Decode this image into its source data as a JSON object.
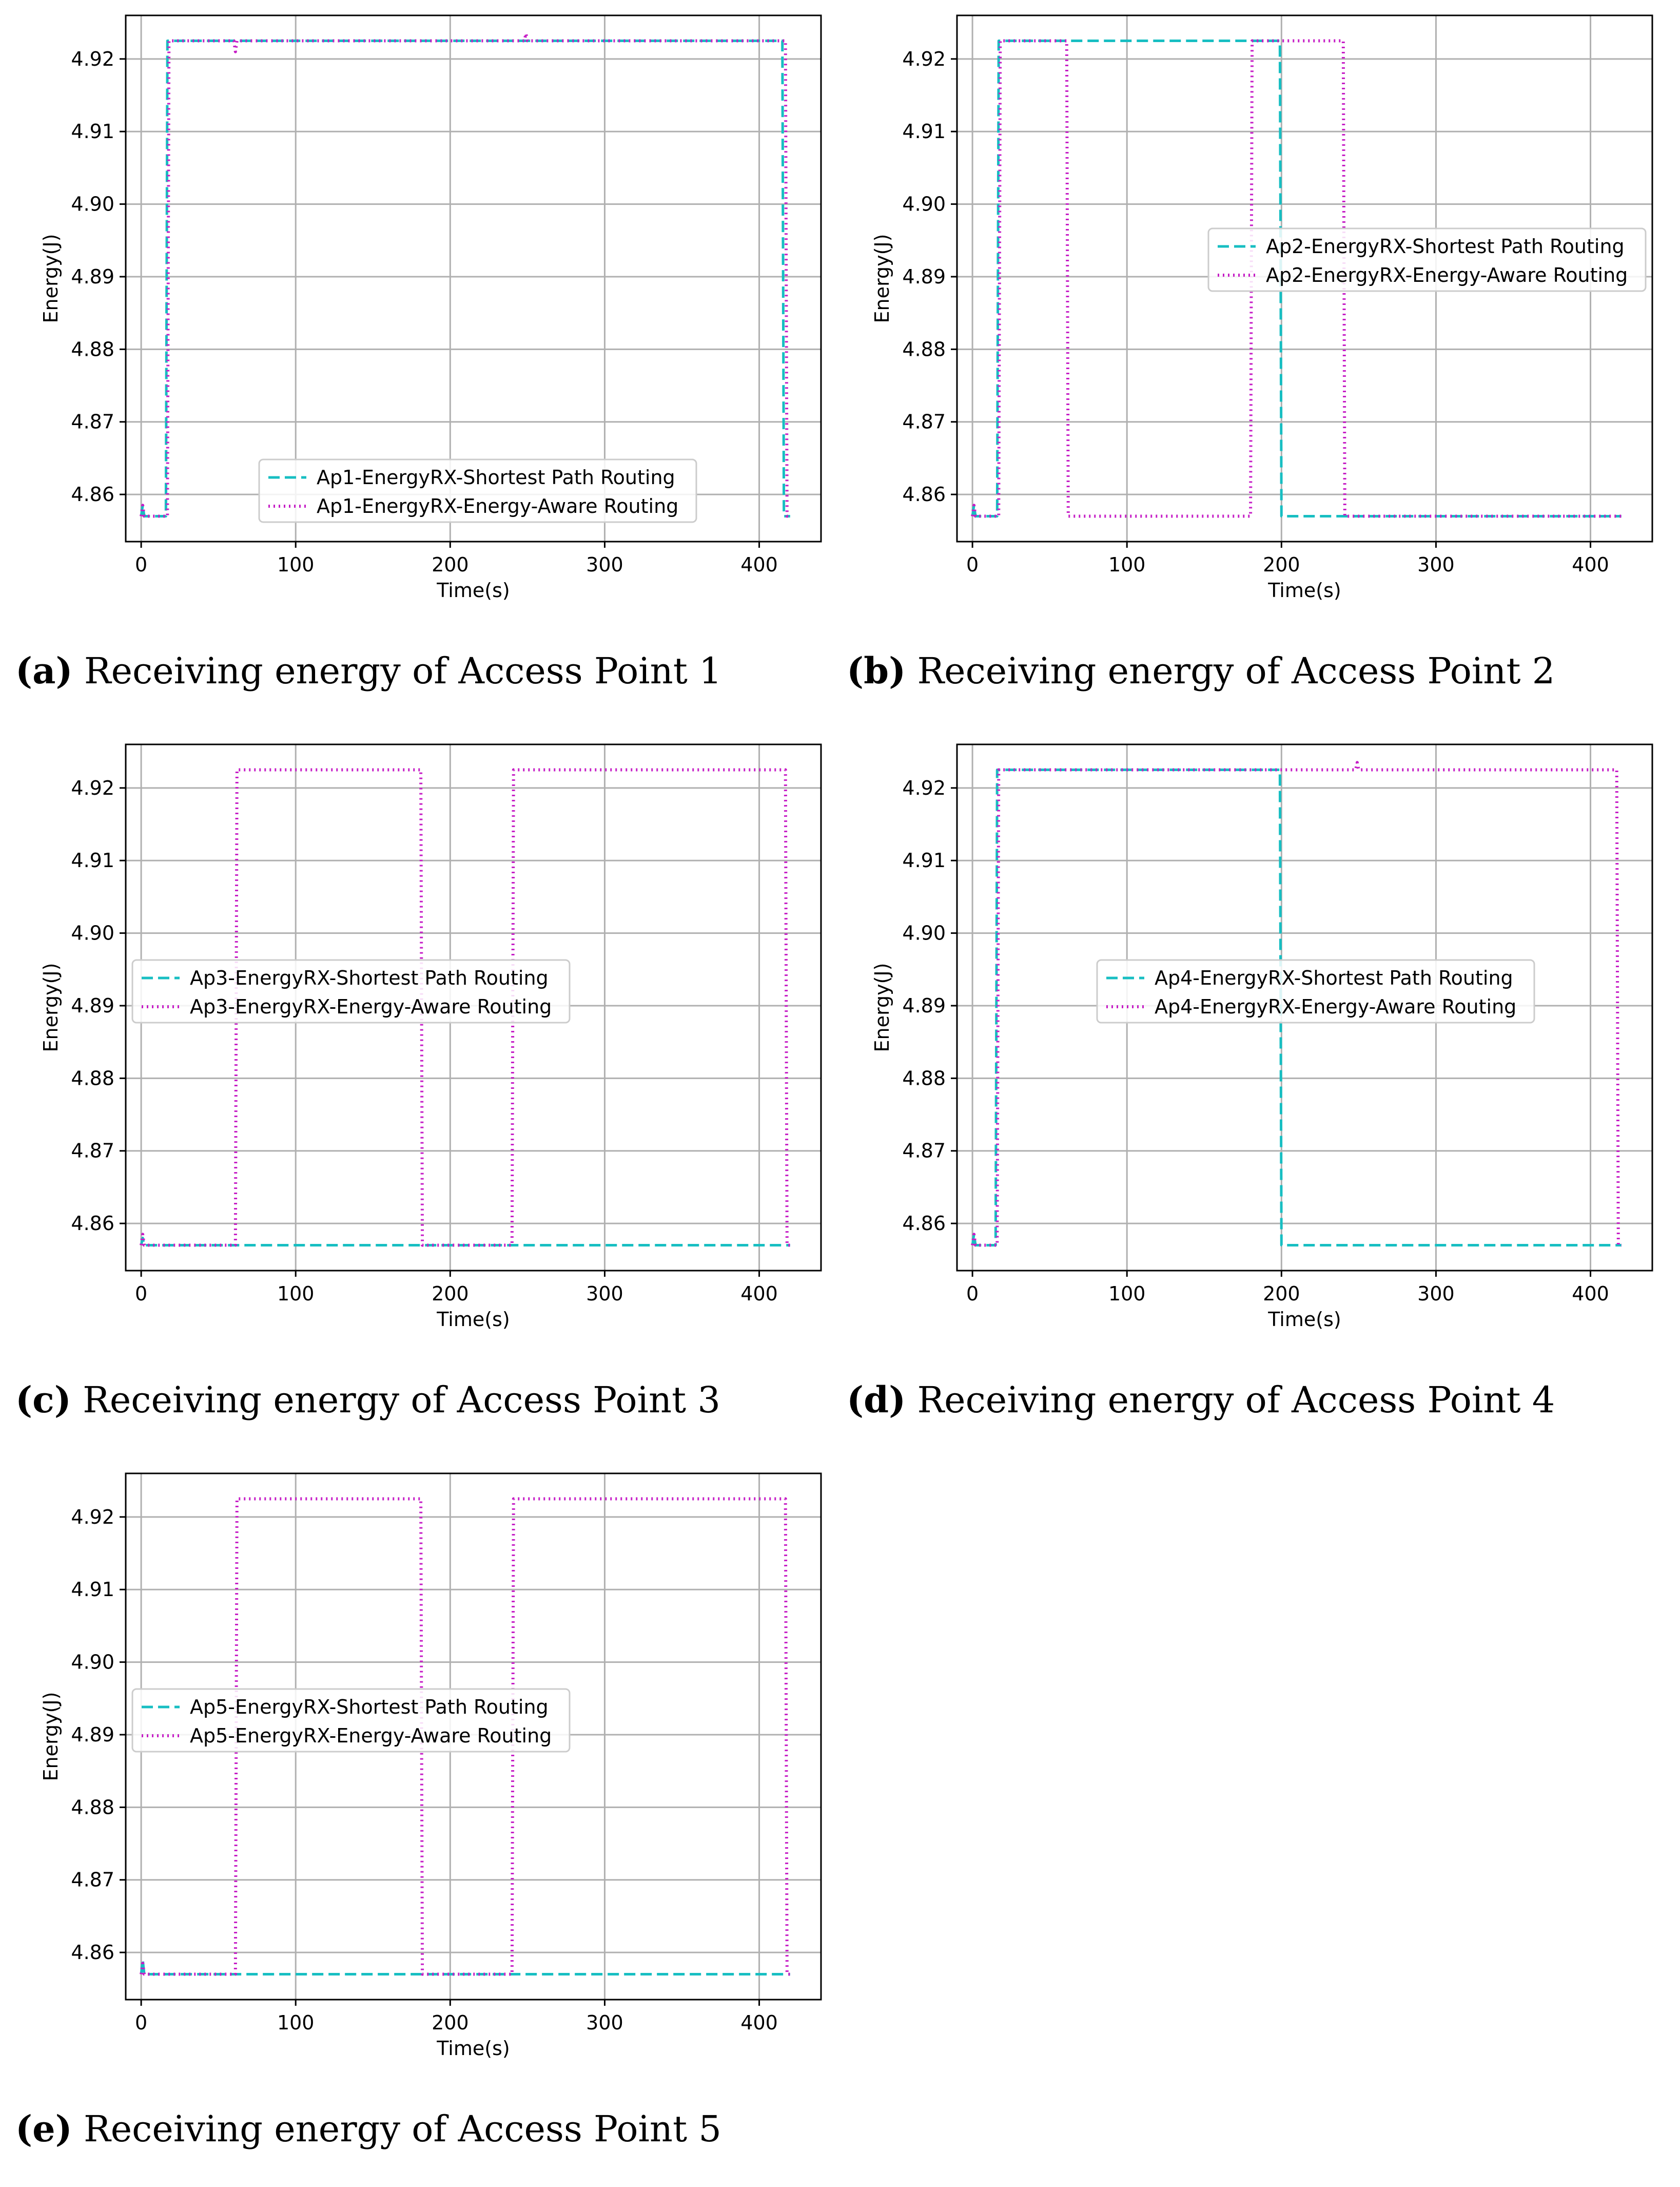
{
  "colors": {
    "shortest": "#17bec2",
    "aware": "#c61ec6",
    "grid": "#b0b0b0"
  },
  "chart_data": [
    {
      "id": "a",
      "type": "line",
      "caption_letter": "(a)",
      "caption_text": "Receiving energy of Access Point 1",
      "xlabel": "Time(s)",
      "ylabel": "Energy(J)",
      "xlim": [
        -10,
        440
      ],
      "ylim": [
        4.8535,
        4.926
      ],
      "xticks": [
        0,
        100,
        200,
        300,
        400
      ],
      "xtick_labels": [
        "0",
        "100",
        "200",
        "300",
        "400"
      ],
      "yticks": [
        4.86,
        4.87,
        4.88,
        4.89,
        4.9,
        4.91,
        4.92
      ],
      "ytick_labels": [
        "4.86",
        "4.87",
        "4.88",
        "4.89",
        "4.90",
        "4.91",
        "4.92"
      ],
      "legend_loc": "lower-center",
      "series": [
        {
          "name": "Ap1-EnergyRX-Shortest Path Routing",
          "style": "dashed",
          "x": [
            0,
            1,
            2,
            5,
            16,
            17,
            100,
            200,
            300,
            415,
            416,
            420
          ],
          "y": [
            4.857,
            4.8585,
            4.857,
            4.857,
            4.857,
            4.9225,
            4.9225,
            4.9225,
            4.9225,
            4.9225,
            4.857,
            4.857
          ]
        },
        {
          "name": "Ap1-EnergyRX-Energy-Aware Routing",
          "style": "dotted",
          "x": [
            0,
            1,
            2,
            5,
            17,
            18,
            60,
            61,
            62,
            200,
            248,
            249,
            250,
            417,
            418,
            420
          ],
          "y": [
            4.857,
            4.8585,
            4.857,
            4.857,
            4.857,
            4.9225,
            4.9225,
            4.921,
            4.9225,
            4.9225,
            4.9225,
            4.9235,
            4.9225,
            4.9225,
            4.857,
            4.857
          ]
        }
      ]
    },
    {
      "id": "b",
      "type": "line",
      "caption_letter": "(b)",
      "caption_text": "Receiving energy of Access Point 2",
      "xlabel": "Time(s)",
      "ylabel": "Energy(J)",
      "xlim": [
        -10,
        440
      ],
      "ylim": [
        4.8535,
        4.926
      ],
      "xticks": [
        0,
        100,
        200,
        300,
        400
      ],
      "xtick_labels": [
        "0",
        "100",
        "200",
        "300",
        "400"
      ],
      "yticks": [
        4.86,
        4.87,
        4.88,
        4.89,
        4.9,
        4.91,
        4.92
      ],
      "ytick_labels": [
        "4.86",
        "4.87",
        "4.88",
        "4.89",
        "4.90",
        "4.91",
        "4.92"
      ],
      "legend_loc": "center-right",
      "series": [
        {
          "name": "Ap2-EnergyRX-Shortest Path Routing",
          "style": "dashed",
          "x": [
            0,
            1,
            2,
            5,
            16,
            17,
            100,
            199,
            200,
            300,
            420
          ],
          "y": [
            4.857,
            4.8585,
            4.857,
            4.857,
            4.857,
            4.9225,
            4.9225,
            4.9225,
            4.857,
            4.857,
            4.857
          ]
        },
        {
          "name": "Ap2-EnergyRX-Energy-Aware Routing",
          "style": "dotted",
          "x": [
            0,
            1,
            2,
            5,
            17,
            18,
            61,
            62,
            180,
            181,
            240,
            241,
            420
          ],
          "y": [
            4.857,
            4.8585,
            4.857,
            4.857,
            4.857,
            4.9225,
            4.9225,
            4.857,
            4.857,
            4.9225,
            4.9225,
            4.857,
            4.857
          ]
        }
      ]
    },
    {
      "id": "c",
      "type": "line",
      "caption_letter": "(c)",
      "caption_text": "Receiving energy of Access Point 3",
      "xlabel": "Time(s)",
      "ylabel": "Energy(J)",
      "xlim": [
        -10,
        440
      ],
      "ylim": [
        4.8535,
        4.926
      ],
      "xticks": [
        0,
        100,
        200,
        300,
        400
      ],
      "xtick_labels": [
        "0",
        "100",
        "200",
        "300",
        "400"
      ],
      "yticks": [
        4.86,
        4.87,
        4.88,
        4.89,
        4.9,
        4.91,
        4.92
      ],
      "ytick_labels": [
        "4.86",
        "4.87",
        "4.88",
        "4.89",
        "4.90",
        "4.91",
        "4.92"
      ],
      "legend_loc": "center-left",
      "series": [
        {
          "name": "Ap3-EnergyRX-Shortest Path Routing",
          "style": "dashed",
          "x": [
            0,
            1,
            2,
            5,
            100,
            200,
            300,
            420
          ],
          "y": [
            4.857,
            4.858,
            4.857,
            4.857,
            4.857,
            4.857,
            4.857,
            4.857
          ]
        },
        {
          "name": "Ap3-EnergyRX-Energy-Aware Routing",
          "style": "dotted",
          "x": [
            0,
            1,
            2,
            5,
            61,
            62,
            181,
            182,
            240,
            241,
            417,
            418,
            420
          ],
          "y": [
            4.857,
            4.8585,
            4.857,
            4.857,
            4.857,
            4.9225,
            4.9225,
            4.857,
            4.857,
            4.9225,
            4.9225,
            4.857,
            4.857
          ]
        }
      ]
    },
    {
      "id": "d",
      "type": "line",
      "caption_letter": "(d)",
      "caption_text": "Receiving energy of Access Point 4",
      "xlabel": "Time(s)",
      "ylabel": "Energy(J)",
      "xlim": [
        -10,
        440
      ],
      "ylim": [
        4.8535,
        4.926
      ],
      "xticks": [
        0,
        100,
        200,
        300,
        400
      ],
      "xtick_labels": [
        "0",
        "100",
        "200",
        "300",
        "400"
      ],
      "yticks": [
        4.86,
        4.87,
        4.88,
        4.89,
        4.9,
        4.91,
        4.92
      ],
      "ytick_labels": [
        "4.86",
        "4.87",
        "4.88",
        "4.89",
        "4.90",
        "4.91",
        "4.92"
      ],
      "legend_loc": "center",
      "series": [
        {
          "name": "Ap4-EnergyRX-Shortest Path Routing",
          "style": "dashed",
          "x": [
            0,
            1,
            2,
            5,
            15,
            16,
            100,
            199,
            200,
            300,
            420
          ],
          "y": [
            4.857,
            4.8585,
            4.857,
            4.857,
            4.857,
            4.9225,
            4.9225,
            4.9225,
            4.857,
            4.857,
            4.857
          ]
        },
        {
          "name": "Ap4-EnergyRX-Energy-Aware Routing",
          "style": "dotted",
          "x": [
            0,
            1,
            2,
            5,
            16,
            17,
            100,
            248,
            249,
            250,
            417,
            418,
            420
          ],
          "y": [
            4.857,
            4.8585,
            4.857,
            4.857,
            4.857,
            4.9225,
            4.9225,
            4.9225,
            4.9235,
            4.9225,
            4.9225,
            4.857,
            4.857
          ]
        }
      ]
    },
    {
      "id": "e",
      "type": "line",
      "caption_letter": "(e)",
      "caption_text": "Receiving energy of Access Point 5",
      "xlabel": "Time(s)",
      "ylabel": "Energy(J)",
      "xlim": [
        -10,
        440
      ],
      "ylim": [
        4.8535,
        4.926
      ],
      "xticks": [
        0,
        100,
        200,
        300,
        400
      ],
      "xtick_labels": [
        "0",
        "100",
        "200",
        "300",
        "400"
      ],
      "yticks": [
        4.86,
        4.87,
        4.88,
        4.89,
        4.9,
        4.91,
        4.92
      ],
      "ytick_labels": [
        "4.86",
        "4.87",
        "4.88",
        "4.89",
        "4.90",
        "4.91",
        "4.92"
      ],
      "legend_loc": "center-left",
      "series": [
        {
          "name": "Ap5-EnergyRX-Shortest Path Routing",
          "style": "dashed",
          "x": [
            0,
            1,
            2,
            5,
            100,
            200,
            300,
            420
          ],
          "y": [
            4.857,
            4.859,
            4.857,
            4.857,
            4.857,
            4.857,
            4.857,
            4.857
          ]
        },
        {
          "name": "Ap5-EnergyRX-Energy-Aware Routing",
          "style": "dotted",
          "x": [
            0,
            1,
            2,
            5,
            61,
            62,
            181,
            182,
            240,
            241,
            417,
            418,
            420
          ],
          "y": [
            4.857,
            4.8585,
            4.857,
            4.857,
            4.857,
            4.9225,
            4.9225,
            4.857,
            4.857,
            4.9225,
            4.9225,
            4.857,
            4.857
          ]
        }
      ]
    }
  ]
}
